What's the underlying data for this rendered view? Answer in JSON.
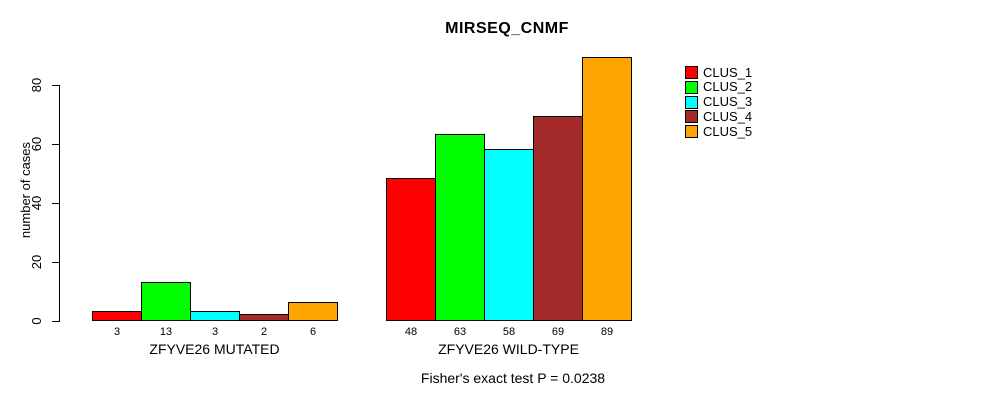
{
  "chart_data": {
    "type": "bar",
    "title": "MIRSEQ_CNMF",
    "ylabel": "number of cases",
    "subtitle": "Fisher's exact test P = 0.0238",
    "yticks": [
      0,
      20,
      40,
      60,
      80
    ],
    "ylim": [
      0,
      89
    ],
    "grid": false,
    "legend_position": "right",
    "series_names": [
      "CLUS_1",
      "CLUS_2",
      "CLUS_3",
      "CLUS_4",
      "CLUS_5"
    ],
    "colors": [
      "#FF0000",
      "#00FF00",
      "#00FFFF",
      "#A52A2A",
      "#FFA500"
    ],
    "categories": [
      "ZFYVE26 MUTATED",
      "ZFYVE26 WILD-TYPE"
    ],
    "groups": [
      {
        "label": "ZFYVE26 MUTATED",
        "values": [
          3,
          13,
          3,
          2,
          6
        ]
      },
      {
        "label": "ZFYVE26 WILD-TYPE",
        "values": [
          48,
          63,
          58,
          69,
          89
        ]
      }
    ],
    "bar_value_labels_shown": true
  }
}
